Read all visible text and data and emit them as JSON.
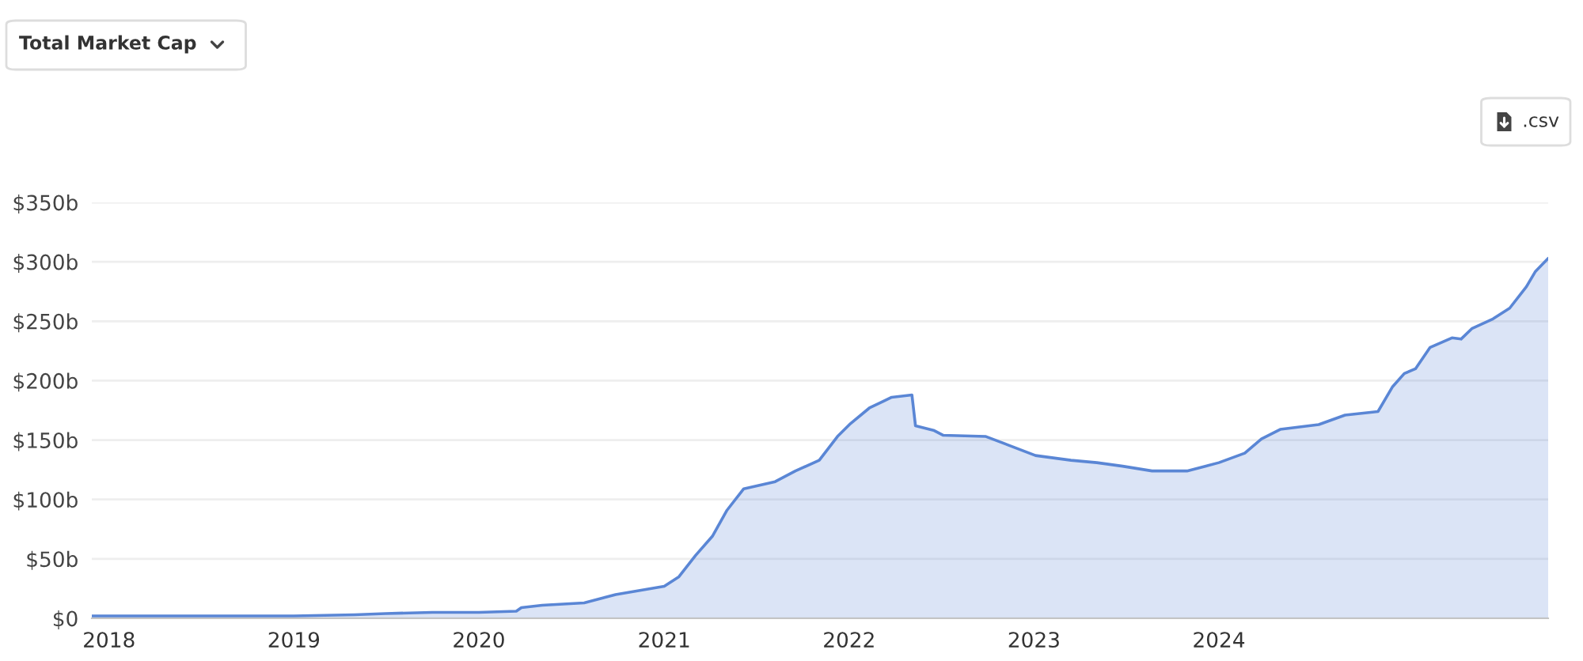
{
  "chart_data": {
    "type": "area",
    "title": "Total Market Cap",
    "annotations": [
      ".csv"
    ],
    "x": [
      "2017-11-28",
      "2018-06-01",
      "2019-01-01",
      "2019-05-01",
      "2019-07-01",
      "2019-10-01",
      "2020-01-01",
      "2020-03-15",
      "2020-03-25",
      "2020-05-05",
      "2020-07-27",
      "2020-09-27",
      "2021-01-01",
      "2021-01-30",
      "2021-03-04",
      "2021-04-06",
      "2021-05-05",
      "2021-06-07",
      "2021-08-08",
      "2021-09-17",
      "2021-11-03",
      "2021-12-09",
      "2022-01-04",
      "2022-02-10",
      "2022-03-26",
      "2022-05-05",
      "2022-05-12",
      "2022-06-18",
      "2022-07-06",
      "2022-09-28",
      "2022-11-10",
      "2023-01-04",
      "2023-03-15",
      "2023-05-05",
      "2023-06-25",
      "2023-08-22",
      "2023-10-30",
      "2024-01-01",
      "2024-02-21",
      "2024-03-25",
      "2024-05-01",
      "2024-07-16",
      "2024-09-06",
      "2024-11-10",
      "2024-12-09",
      "2025-01-01",
      "2025-01-23",
      "2025-02-21",
      "2025-04-05",
      "2025-04-23",
      "2025-05-15",
      "2025-06-25",
      "2025-07-28",
      "2025-08-30",
      "2025-09-17",
      "2025-10-12"
    ],
    "series": [
      {
        "color": "#5a86d5",
        "values": [
          2,
          2,
          2,
          3,
          4,
          5,
          5,
          6,
          9,
          11,
          13,
          20,
          27,
          35,
          53,
          69,
          91,
          109,
          115,
          124,
          133,
          153,
          164,
          177,
          186,
          188,
          162,
          158,
          154,
          153,
          146,
          137,
          133,
          131,
          128,
          124,
          124,
          131,
          139,
          151,
          159,
          163,
          171,
          174,
          195,
          206,
          210,
          228,
          236,
          235,
          244,
          252,
          261,
          279,
          292,
          303
        ]
      }
    ],
    "xlim": [
      "2017-11-28",
      "2025-10-12"
    ],
    "xticks": [
      {
        "value": "2018-01-01",
        "label": "2018"
      },
      {
        "value": "2019-01-01",
        "label": "2019"
      },
      {
        "value": "2020-01-01",
        "label": "2020"
      },
      {
        "value": "2021-01-01",
        "label": "2021"
      },
      {
        "value": "2022-01-01",
        "label": "2022"
      },
      {
        "value": "2023-01-01",
        "label": "2023"
      },
      {
        "value": "2024-01-01",
        "label": "2024"
      }
    ],
    "ylim": [
      0,
      350
    ],
    "yticks": [
      {
        "value": 0,
        "label": "$0"
      },
      {
        "value": 50,
        "label": "$50b"
      },
      {
        "value": 100,
        "label": "$100b"
      },
      {
        "value": 150,
        "label": "$150b"
      },
      {
        "value": 200,
        "label": "$200b"
      },
      {
        "value": 250,
        "label": "$250b"
      },
      {
        "value": 300,
        "label": "$300b"
      },
      {
        "value": 350,
        "label": "$350b"
      }
    ],
    "grid": "y"
  }
}
